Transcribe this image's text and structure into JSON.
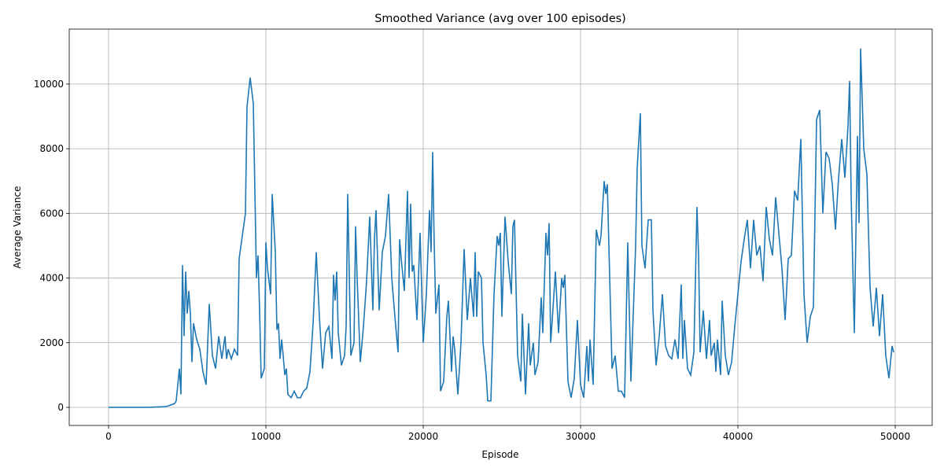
{
  "chart_data": {
    "type": "line",
    "title": "Smoothed Variance (avg over 100 episodes)",
    "x_label": "Episode",
    "y_label": "Average Variance",
    "xlim": [
      -2500,
      52350
    ],
    "ylim": [
      -560,
      11700
    ],
    "xticks": [
      0,
      10000,
      20000,
      30000,
      40000,
      50000
    ],
    "yticks": [
      0,
      2000,
      4000,
      6000,
      8000,
      10000
    ],
    "grid": true,
    "series": [
      {
        "name": "Smoothed Variance",
        "color": "#1f77b4",
        "x": [
          0,
          500,
          1000,
          1500,
          2000,
          2500,
          3000,
          3500,
          3700,
          4000,
          4200,
          4300,
          4500,
          4600,
          4700,
          4800,
          4900,
          5000,
          5100,
          5200,
          5300,
          5400,
          5600,
          5800,
          6000,
          6200,
          6400,
          6600,
          6800,
          7000,
          7200,
          7400,
          7500,
          7600,
          7800,
          8000,
          8200,
          8300,
          8500,
          8700,
          8800,
          9000,
          9200,
          9400,
          9500,
          9600,
          9700,
          9900,
          10000,
          10100,
          10300,
          10400,
          10600,
          10700,
          10800,
          10900,
          11000,
          11100,
          11200,
          11300,
          11400,
          11600,
          11800,
          12000,
          12200,
          12400,
          12600,
          12800,
          13000,
          13200,
          13400,
          13600,
          13800,
          14000,
          14200,
          14300,
          14400,
          14500,
          14600,
          14800,
          15000,
          15100,
          15200,
          15400,
          15600,
          15700,
          15800,
          16000,
          16200,
          16400,
          16600,
          16800,
          16900,
          17000,
          17200,
          17400,
          17600,
          17800,
          18000,
          18200,
          18400,
          18500,
          18600,
          18800,
          19000,
          19100,
          19200,
          19300,
          19400,
          19600,
          19800,
          20000,
          20200,
          20400,
          20500,
          20600,
          20700,
          20800,
          21000,
          21100,
          21300,
          21500,
          21600,
          21800,
          21900,
          22000,
          22200,
          22400,
          22600,
          22800,
          23000,
          23200,
          23300,
          23400,
          23500,
          23700,
          23800,
          24000,
          24100,
          24300,
          24500,
          24700,
          24800,
          24900,
          25000,
          25200,
          25400,
          25600,
          25700,
          25800,
          26000,
          26200,
          26300,
          26500,
          26700,
          26800,
          27000,
          27100,
          27300,
          27500,
          27600,
          27800,
          27900,
          28000,
          28100,
          28200,
          28400,
          28600,
          28800,
          28900,
          29000,
          29200,
          29400,
          29600,
          29800,
          30000,
          30200,
          30400,
          30500,
          30600,
          30800,
          31000,
          31200,
          31300,
          31500,
          31600,
          31700,
          31800,
          32000,
          32200,
          32400,
          32600,
          32800,
          33000,
          33200,
          33500,
          33600,
          33800,
          33900,
          34100,
          34300,
          34500,
          34600,
          34800,
          35000,
          35200,
          35400,
          35600,
          35800,
          36000,
          36200,
          36400,
          36500,
          36600,
          36800,
          37000,
          37200,
          37400,
          37500,
          37600,
          37800,
          38000,
          38200,
          38300,
          38500,
          38600,
          38700,
          38900,
          39000,
          39200,
          39400,
          39600,
          39800,
          40000,
          40200,
          40400,
          40600,
          40800,
          41000,
          41200,
          41400,
          41600,
          41800,
          42000,
          42200,
          42400,
          42600,
          42800,
          43000,
          43200,
          43400,
          43600,
          43800,
          44000,
          44200,
          44400,
          44600,
          44800,
          45000,
          45200,
          45400,
          45600,
          45800,
          46000,
          46200,
          46400,
          46600,
          46800,
          47000,
          47100,
          47200,
          47400,
          47600,
          47700,
          47800,
          48000,
          48200,
          48400,
          48600,
          48800,
          49000,
          49200,
          49400,
          49600,
          49800,
          49900
        ],
        "values": [
          0,
          0,
          0,
          0,
          0,
          0,
          10,
          20,
          30,
          80,
          120,
          200,
          1200,
          400,
          4400,
          2200,
          4200,
          2900,
          3600,
          2900,
          1400,
          2600,
          2100,
          1800,
          1100,
          700,
          3200,
          1600,
          1200,
          2200,
          1500,
          2200,
          1500,
          1800,
          1500,
          1800,
          1600,
          4600,
          5300,
          6000,
          9300,
          10200,
          9400,
          4000,
          4700,
          3000,
          900,
          1200,
          5100,
          4300,
          3500,
          6600,
          4800,
          2400,
          2600,
          1500,
          2100,
          1600,
          1000,
          1200,
          400,
          300,
          500,
          300,
          300,
          500,
          600,
          1100,
          2600,
          4800,
          2800,
          1200,
          2300,
          2500,
          1500,
          4100,
          3300,
          4200,
          2300,
          1300,
          1600,
          2500,
          6600,
          1600,
          2000,
          5600,
          4000,
          1400,
          2500,
          3900,
          5900,
          3000,
          5200,
          6100,
          3000,
          4800,
          5300,
          6600,
          4000,
          2800,
          1700,
          5200,
          4600,
          3600,
          6700,
          4000,
          6300,
          4200,
          4400,
          2700,
          5400,
          2000,
          3500,
          6100,
          4800,
          7900,
          5000,
          2900,
          3800,
          500,
          800,
          2800,
          3300,
          1100,
          2200,
          1800,
          400,
          2000,
          4900,
          2700,
          4000,
          2800,
          4800,
          2800,
          4200,
          4000,
          2000,
          1000,
          200,
          200,
          3500,
          5300,
          5000,
          5400,
          2800,
          5900,
          4500,
          3500,
          5600,
          5800,
          1600,
          800,
          2900,
          400,
          2600,
          1300,
          2000,
          1000,
          1400,
          3400,
          2300,
          5400,
          4700,
          5700,
          2000,
          2700,
          4200,
          2300,
          4000,
          3700,
          4100,
          800,
          300,
          900,
          2700,
          700,
          300,
          1900,
          800,
          2100,
          700,
          5500,
          5000,
          5300,
          7000,
          6600,
          6900,
          5000,
          1200,
          1600,
          500,
          500,
          300,
          5100,
          800,
          5000,
          7400,
          9100,
          5000,
          4300,
          5800,
          5800,
          3000,
          1300,
          2200,
          3500,
          1900,
          1600,
          1500,
          2100,
          1500,
          3800,
          1500,
          2700,
          1200,
          1000,
          1700,
          6200,
          4700,
          1700,
          3000,
          1500,
          2700,
          1600,
          2000,
          1100,
          2100,
          1000,
          3300,
          1600,
          1000,
          1400,
          2500,
          3500,
          4500,
          5200,
          5800,
          4300,
          5800,
          4700,
          5000,
          3900,
          6200,
          5200,
          4700,
          6500,
          5400,
          4300,
          2700,
          4600,
          4700,
          6700,
          6400,
          8300,
          3500,
          2000,
          2800,
          3100,
          8900,
          9200,
          6000,
          7900,
          7700,
          6900,
          5500,
          7100,
          8300,
          7100,
          8700,
          10100,
          6500,
          2300,
          8400,
          5700,
          11100,
          8000,
          7200,
          3700,
          2500,
          3700,
          2200,
          3500,
          1600,
          900,
          1900,
          1700
        ]
      }
    ]
  }
}
